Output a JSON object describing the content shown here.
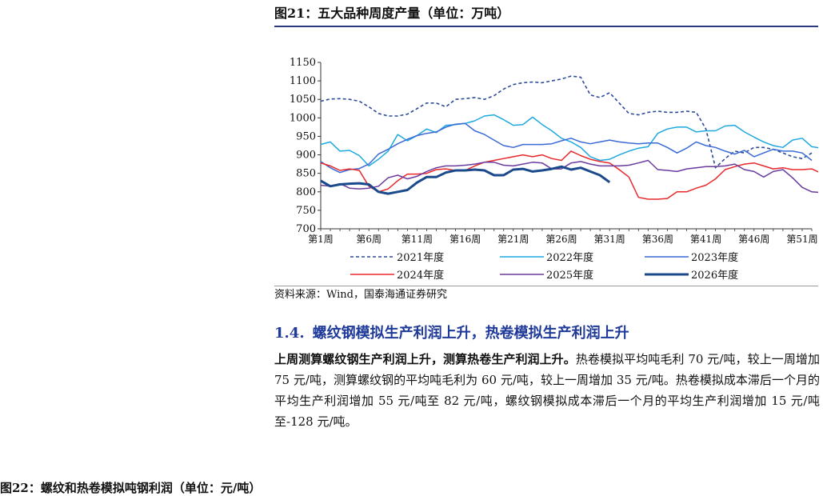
{
  "figure": {
    "title": "图21：五大品种周度产量（单位：万吨）",
    "source": "资料来源：Wind，国泰海通证券研究"
  },
  "chart_data": {
    "type": "line",
    "title": "图21：五大品种周度产量（单位：万吨）",
    "ylim": [
      700,
      1150
    ],
    "yticks": [
      700,
      750,
      800,
      850,
      900,
      950,
      1000,
      1050,
      1100,
      1150
    ],
    "xlim": [
      1,
      52
    ],
    "xtick_values": [
      1,
      6,
      11,
      16,
      21,
      26,
      31,
      36,
      41,
      46,
      51
    ],
    "xtick_labels": [
      "第1周",
      "第6周",
      "第11周",
      "第16周",
      "第21周",
      "第26周",
      "第31周",
      "第36周",
      "第41周",
      "第46周",
      "第51周"
    ],
    "grid": false,
    "legend_position": "bottom",
    "series": [
      {
        "name": "2021年度",
        "color": "#2b4a9a",
        "style": "dashed",
        "values": [
          1045,
          1051,
          1052,
          1050,
          1045,
          1030,
          1012,
          1005,
          1005,
          1010,
          1025,
          1040,
          1040,
          1030,
          1050,
          1052,
          1055,
          1050,
          1060,
          1078,
          1090,
          1095,
          1097,
          1095,
          1100,
          1105,
          1113,
          1110,
          1062,
          1055,
          1068,
          1040,
          1012,
          1008,
          1015,
          1018,
          1015,
          1015,
          1018,
          1015,
          970,
          865,
          890,
          910,
          905,
          920,
          920,
          915,
          905,
          895,
          890,
          905
        ]
      },
      {
        "name": "2022年度",
        "color": "#1ea8e0",
        "style": "solid",
        "values": [
          928,
          935,
          910,
          912,
          898,
          870,
          888,
          910,
          955,
          938,
          952,
          970,
          960,
          980,
          982,
          985,
          992,
          1005,
          1008,
          995,
          980,
          982,
          1002,
          982,
          965,
          945,
          935,
          920,
          895,
          885,
          888,
          900,
          910,
          918,
          922,
          958,
          970,
          975,
          975,
          962,
          965,
          965,
          978,
          980,
          962,
          948,
          935,
          925,
          920,
          940,
          945,
          922,
          918
        ]
      },
      {
        "name": "2023年度",
        "color": "#3a6ad6",
        "style": "solid",
        "values": [
          882,
          865,
          852,
          860,
          863,
          875,
          902,
          915,
          930,
          942,
          952,
          958,
          962,
          975,
          983,
          985,
          965,
          955,
          940,
          925,
          920,
          928,
          928,
          928,
          930,
          938,
          945,
          935,
          930,
          935,
          940,
          935,
          932,
          930,
          932,
          932,
          920,
          905,
          918,
          935,
          925,
          920,
          910,
          902,
          912,
          895,
          905,
          915,
          910,
          910,
          905,
          885
        ]
      },
      {
        "name": "2024年度",
        "color": "#e8282b",
        "style": "solid",
        "values": [
          878,
          870,
          858,
          862,
          858,
          815,
          800,
          808,
          830,
          848,
          848,
          850,
          860,
          862,
          858,
          858,
          870,
          880,
          885,
          890,
          895,
          900,
          895,
          900,
          890,
          885,
          910,
          898,
          888,
          882,
          878,
          860,
          840,
          785,
          780,
          780,
          782,
          800,
          800,
          810,
          818,
          835,
          860,
          868,
          875,
          878,
          870,
          862,
          865,
          860,
          860,
          862,
          850,
          845
        ]
      },
      {
        "name": "2025年度",
        "color": "#6b3a9e",
        "style": "solid",
        "values": [
          818,
          815,
          822,
          810,
          808,
          810,
          815,
          838,
          845,
          835,
          842,
          855,
          865,
          870,
          870,
          872,
          875,
          880,
          880,
          872,
          870,
          875,
          880,
          878,
          862,
          862,
          878,
          882,
          875,
          870,
          870,
          870,
          872,
          878,
          885,
          860,
          858,
          855,
          862,
          865,
          868,
          868,
          870,
          875,
          860,
          855,
          840,
          855,
          860,
          838,
          812,
          800,
          798
        ]
      },
      {
        "name": "2026年度",
        "color": "#1a4a8c",
        "style": "bold",
        "values": [
          830,
          815,
          820,
          822,
          823,
          820,
          800,
          795,
          800,
          805,
          825,
          840,
          840,
          852,
          858,
          858,
          860,
          858,
          845,
          845,
          860,
          862,
          855,
          858,
          862,
          868,
          860,
          865,
          855,
          845,
          826
        ]
      }
    ]
  },
  "section": {
    "number": "1.4.",
    "title": "螺纹钢模拟生产利润上升，热卷模拟生产利润上升"
  },
  "paragraph": {
    "lead": "上周测算螺纹钢生产利润上升，测算热卷生产利润上升。",
    "body": "热卷模拟平均吨毛利 70 元/吨，较上一周增加 75 元/吨，测算螺纹钢的平均吨毛利为 60 元/吨，较上一周增加 35 元/吨。热卷模拟成本滞后一个月的平均生产利润增加 55 元/吨至 82 元/吨，螺纹钢模拟成本滞后一个月的平均生产利润增加 15 元/吨至-128 元/吨。"
  },
  "next_figure": {
    "title": "图22：螺纹和热卷模拟吨钢利润（单位：元/吨）"
  }
}
